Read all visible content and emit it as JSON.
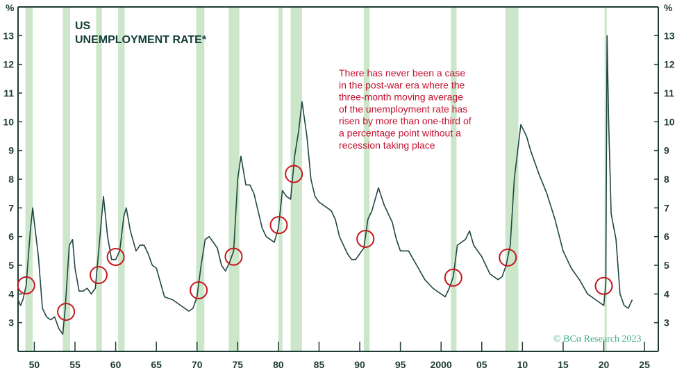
{
  "chart_data": {
    "type": "line",
    "title": "US",
    "subtitle": "UNEMPLOYMENT RATE*",
    "ylabel_left": "%",
    "ylabel_right": "%",
    "xlim": [
      1948,
      2026.7
    ],
    "ylim": [
      2,
      14
    ],
    "yticks": [
      3,
      4,
      5,
      6,
      7,
      8,
      9,
      10,
      11,
      12,
      13
    ],
    "xticks": [
      {
        "year": 1950,
        "label": "50"
      },
      {
        "year": 1955,
        "label": "55"
      },
      {
        "year": 1960,
        "label": "60"
      },
      {
        "year": 1965,
        "label": "65"
      },
      {
        "year": 1970,
        "label": "70"
      },
      {
        "year": 1975,
        "label": "75"
      },
      {
        "year": 1980,
        "label": "80"
      },
      {
        "year": 1985,
        "label": "85"
      },
      {
        "year": 1990,
        "label": "90"
      },
      {
        "year": 1995,
        "label": "95"
      },
      {
        "year": 2000,
        "label": "2000"
      },
      {
        "year": 2005,
        "label": "05"
      },
      {
        "year": 2010,
        "label": "10"
      },
      {
        "year": 2015,
        "label": "15"
      },
      {
        "year": 2020,
        "label": "20"
      },
      {
        "year": 2025,
        "label": "25"
      }
    ],
    "recessions": [
      [
        1948.9,
        1949.8
      ],
      [
        1953.5,
        1954.4
      ],
      [
        1957.6,
        1958.3
      ],
      [
        1960.3,
        1961.1
      ],
      [
        1969.9,
        1970.9
      ],
      [
        1973.9,
        1975.2
      ],
      [
        1980.0,
        1980.5
      ],
      [
        1981.5,
        1982.9
      ],
      [
        1990.5,
        1991.2
      ],
      [
        2001.2,
        2001.9
      ],
      [
        2007.9,
        2009.5
      ],
      [
        2020.1,
        2020.3
      ]
    ],
    "series": [
      {
        "name": "Unemployment rate",
        "points": [
          [
            1948.0,
            3.8
          ],
          [
            1948.3,
            3.6
          ],
          [
            1948.6,
            3.8
          ],
          [
            1949.0,
            4.3
          ],
          [
            1949.5,
            6.2
          ],
          [
            1949.8,
            7.0
          ],
          [
            1950.0,
            6.5
          ],
          [
            1950.5,
            5.3
          ],
          [
            1951.0,
            3.5
          ],
          [
            1951.5,
            3.2
          ],
          [
            1952.0,
            3.1
          ],
          [
            1952.5,
            3.2
          ],
          [
            1953.0,
            2.8
          ],
          [
            1953.5,
            2.6
          ],
          [
            1953.8,
            3.5
          ],
          [
            1954.3,
            5.7
          ],
          [
            1954.7,
            5.9
          ],
          [
            1955.0,
            4.9
          ],
          [
            1955.5,
            4.1
          ],
          [
            1956.0,
            4.1
          ],
          [
            1956.5,
            4.2
          ],
          [
            1957.0,
            4.0
          ],
          [
            1957.5,
            4.2
          ],
          [
            1958.0,
            5.8
          ],
          [
            1958.5,
            7.4
          ],
          [
            1959.0,
            6.0
          ],
          [
            1959.5,
            5.2
          ],
          [
            1960.0,
            5.2
          ],
          [
            1960.5,
            5.5
          ],
          [
            1961.0,
            6.7
          ],
          [
            1961.3,
            7.0
          ],
          [
            1961.8,
            6.2
          ],
          [
            1962.5,
            5.5
          ],
          [
            1963.0,
            5.7
          ],
          [
            1963.5,
            5.7
          ],
          [
            1964.0,
            5.4
          ],
          [
            1964.5,
            5.0
          ],
          [
            1965.0,
            4.9
          ],
          [
            1965.5,
            4.4
          ],
          [
            1966.0,
            3.9
          ],
          [
            1967.0,
            3.8
          ],
          [
            1968.0,
            3.6
          ],
          [
            1969.0,
            3.4
          ],
          [
            1969.5,
            3.5
          ],
          [
            1970.0,
            3.9
          ],
          [
            1970.5,
            5.0
          ],
          [
            1971.0,
            5.9
          ],
          [
            1971.5,
            6.0
          ],
          [
            1972.0,
            5.8
          ],
          [
            1972.5,
            5.6
          ],
          [
            1973.0,
            5.0
          ],
          [
            1973.5,
            4.8
          ],
          [
            1974.0,
            5.1
          ],
          [
            1974.5,
            5.5
          ],
          [
            1975.0,
            8.0
          ],
          [
            1975.4,
            8.8
          ],
          [
            1976.0,
            7.8
          ],
          [
            1976.5,
            7.8
          ],
          [
            1977.0,
            7.5
          ],
          [
            1977.5,
            6.9
          ],
          [
            1978.0,
            6.3
          ],
          [
            1978.5,
            6.0
          ],
          [
            1979.0,
            5.9
          ],
          [
            1979.5,
            5.8
          ],
          [
            1980.0,
            6.3
          ],
          [
            1980.5,
            7.6
          ],
          [
            1981.0,
            7.4
          ],
          [
            1981.5,
            7.3
          ],
          [
            1982.0,
            8.8
          ],
          [
            1982.5,
            9.7
          ],
          [
            1982.9,
            10.7
          ],
          [
            1983.5,
            9.5
          ],
          [
            1984.0,
            8.0
          ],
          [
            1984.5,
            7.4
          ],
          [
            1985.0,
            7.2
          ],
          [
            1986.0,
            7.0
          ],
          [
            1986.5,
            6.9
          ],
          [
            1987.0,
            6.6
          ],
          [
            1987.5,
            6.0
          ],
          [
            1988.0,
            5.7
          ],
          [
            1988.5,
            5.4
          ],
          [
            1989.0,
            5.2
          ],
          [
            1989.5,
            5.2
          ],
          [
            1990.0,
            5.4
          ],
          [
            1990.5,
            5.6
          ],
          [
            1991.0,
            6.6
          ],
          [
            1991.5,
            6.9
          ],
          [
            1992.3,
            7.7
          ],
          [
            1993.0,
            7.1
          ],
          [
            1993.5,
            6.8
          ],
          [
            1994.0,
            6.5
          ],
          [
            1994.5,
            5.9
          ],
          [
            1995.0,
            5.5
          ],
          [
            1996.0,
            5.5
          ],
          [
            1997.0,
            5.0
          ],
          [
            1998.0,
            4.5
          ],
          [
            1999.0,
            4.2
          ],
          [
            2000.0,
            4.0
          ],
          [
            2000.5,
            3.9
          ],
          [
            2001.0,
            4.2
          ],
          [
            2001.5,
            4.6
          ],
          [
            2002.0,
            5.7
          ],
          [
            2003.0,
            5.9
          ],
          [
            2003.5,
            6.2
          ],
          [
            2004.0,
            5.7
          ],
          [
            2005.0,
            5.3
          ],
          [
            2006.0,
            4.7
          ],
          [
            2007.0,
            4.5
          ],
          [
            2007.5,
            4.6
          ],
          [
            2008.0,
            5.0
          ],
          [
            2008.5,
            5.7
          ],
          [
            2009.0,
            8.0
          ],
          [
            2009.8,
            9.9
          ],
          [
            2010.5,
            9.5
          ],
          [
            2011.0,
            9.0
          ],
          [
            2012.0,
            8.2
          ],
          [
            2013.0,
            7.5
          ],
          [
            2014.0,
            6.6
          ],
          [
            2015.0,
            5.5
          ],
          [
            2016.0,
            4.9
          ],
          [
            2017.0,
            4.5
          ],
          [
            2018.0,
            4.0
          ],
          [
            2019.0,
            3.8
          ],
          [
            2020.0,
            3.6
          ],
          [
            2020.25,
            4.4
          ],
          [
            2020.4,
            13.0
          ],
          [
            2020.6,
            10.0
          ],
          [
            2020.9,
            6.8
          ],
          [
            2021.5,
            5.9
          ],
          [
            2022.0,
            4.0
          ],
          [
            2022.5,
            3.6
          ],
          [
            2023.0,
            3.5
          ],
          [
            2023.5,
            3.8
          ]
        ]
      }
    ],
    "highlight_circles": [
      [
        1949.0,
        4.3
      ],
      [
        1953.9,
        3.38
      ],
      [
        1957.9,
        4.66
      ],
      [
        1960.0,
        5.29
      ],
      [
        1970.2,
        4.13
      ],
      [
        1974.5,
        5.3
      ],
      [
        1980.05,
        6.4
      ],
      [
        1981.9,
        8.18
      ],
      [
        1990.7,
        5.92
      ],
      [
        2001.5,
        4.57
      ],
      [
        2008.2,
        5.27
      ],
      [
        2020.0,
        4.28
      ]
    ],
    "annotation": [
      "There has never been a case",
      "in the post-war era where the",
      "three-month moving average",
      "of the unemployment rate has",
      "risen by more than one-third of",
      "a percentage point without a",
      "recession taking place"
    ],
    "watermark": "© BCα Research 2023",
    "grid": false,
    "colors": {
      "line": "#1f4640",
      "axis": "#1d3b35",
      "recession": "#cbe6c9",
      "circle": "#c4161c",
      "annotation": "#c4122f",
      "watermark": "#3dae84"
    }
  }
}
